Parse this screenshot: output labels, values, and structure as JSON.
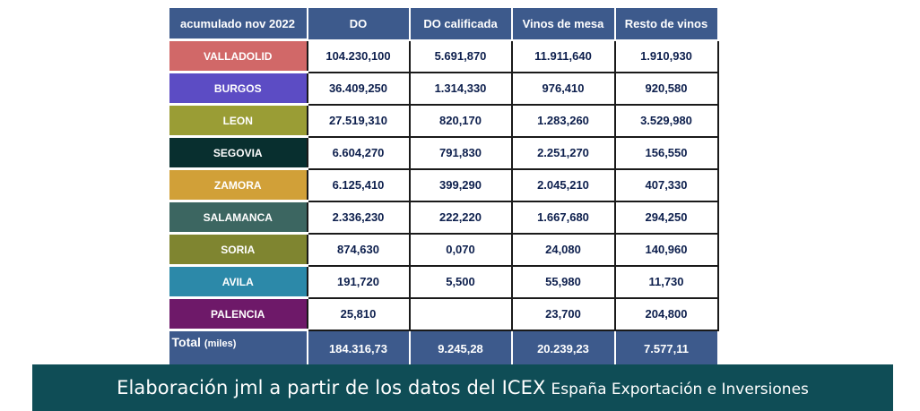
{
  "table": {
    "headers": [
      "acumulado nov 2022",
      "DO",
      "DO calificada",
      "Vinos de mesa",
      "Resto de vinos"
    ],
    "rows": [
      {
        "region": "VALLADOLID",
        "color": "#d16868",
        "values": [
          "104.230,100",
          "5.691,870",
          "11.911,640",
          "1.910,930"
        ]
      },
      {
        "region": "BURGOS",
        "color": "#5c4cc4",
        "values": [
          "36.409,250",
          "1.314,330",
          "976,410",
          "920,580"
        ]
      },
      {
        "region": "LEON",
        "color": "#9a9d35",
        "values": [
          "27.519,310",
          "820,170",
          "1.283,260",
          "3.529,980"
        ]
      },
      {
        "region": "SEGOVIA",
        "color": "#082f2f",
        "values": [
          "6.604,270",
          "791,830",
          "2.251,270",
          "156,550"
        ]
      },
      {
        "region": "ZAMORA",
        "color": "#d1a038",
        "values": [
          "6.125,410",
          "399,290",
          "2.045,210",
          "407,330"
        ]
      },
      {
        "region": "SALAMANCA",
        "color": "#3c6661",
        "values": [
          "2.336,230",
          "222,220",
          "1.667,680",
          "294,250"
        ]
      },
      {
        "region": "SORIA",
        "color": "#7f8530",
        "values": [
          "874,630",
          "0,070",
          "24,080",
          "140,960"
        ]
      },
      {
        "region": "AVILA",
        "color": "#2c89a9",
        "values": [
          "191,720",
          "5,500",
          "55,980",
          "11,730"
        ]
      },
      {
        "region": "PALENCIA",
        "color": "#6e1969",
        "values": [
          "25,810",
          "",
          "23,700",
          "204,800"
        ]
      }
    ],
    "total": {
      "label": "Total",
      "unit": "(miles)",
      "values": [
        "184.316,73",
        "9.245,28",
        "20.239,23",
        "7.577,11"
      ]
    },
    "header_color": "#3d5a8c"
  },
  "footer": {
    "main": "Elaboración jml a partir de los datos del ICEX",
    "sub": "España Exportación e Inversiones",
    "background": "#0f4d56"
  }
}
